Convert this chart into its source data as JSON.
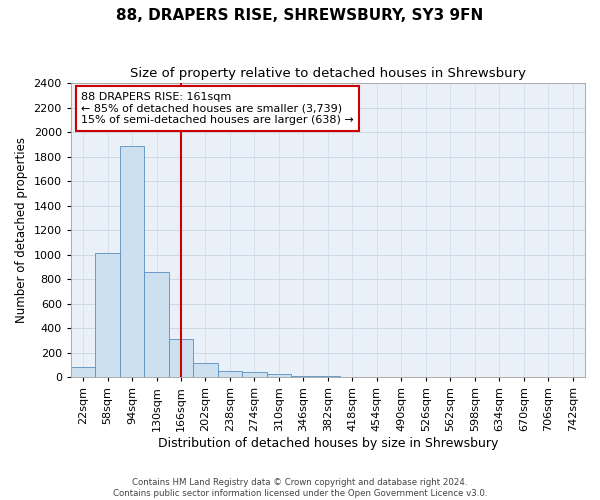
{
  "title1": "88, DRAPERS RISE, SHREWSBURY, SY3 9FN",
  "title2": "Size of property relative to detached houses in Shrewsbury",
  "xlabel": "Distribution of detached houses by size in Shrewsbury",
  "ylabel": "Number of detached properties",
  "footer1": "Contains HM Land Registry data © Crown copyright and database right 2024.",
  "footer2": "Contains public sector information licensed under the Open Government Licence v3.0.",
  "bin_labels": [
    "22sqm",
    "58sqm",
    "94sqm",
    "130sqm",
    "166sqm",
    "202sqm",
    "238sqm",
    "274sqm",
    "310sqm",
    "346sqm",
    "382sqm",
    "418sqm",
    "454sqm",
    "490sqm",
    "526sqm",
    "562sqm",
    "598sqm",
    "634sqm",
    "670sqm",
    "706sqm",
    "742sqm"
  ],
  "bar_values": [
    80,
    1010,
    1890,
    860,
    310,
    115,
    55,
    40,
    25,
    10,
    10,
    0,
    0,
    0,
    0,
    0,
    0,
    0,
    0,
    0,
    0
  ],
  "bar_color": "#cce0f0",
  "bar_edge_color": "#5a8fc0",
  "vline_x_index": 4,
  "vline_color": "#cc0000",
  "annotation_line1": "88 DRAPERS RISE: 161sqm",
  "annotation_line2": "← 85% of detached houses are smaller (3,739)",
  "annotation_line3": "15% of semi-detached houses are larger (638) →",
  "annotation_box_color": "#cc0000",
  "ylim": [
    0,
    2400
  ],
  "yticks": [
    0,
    200,
    400,
    600,
    800,
    1000,
    1200,
    1400,
    1600,
    1800,
    2000,
    2200,
    2400
  ],
  "grid_color": "#d0d8e8",
  "background_color": "#eaf0f8",
  "title1_fontsize": 11,
  "title2_fontsize": 9.5,
  "xlabel_fontsize": 9,
  "ylabel_fontsize": 8.5,
  "tick_fontsize": 8,
  "annotation_fontsize": 8
}
